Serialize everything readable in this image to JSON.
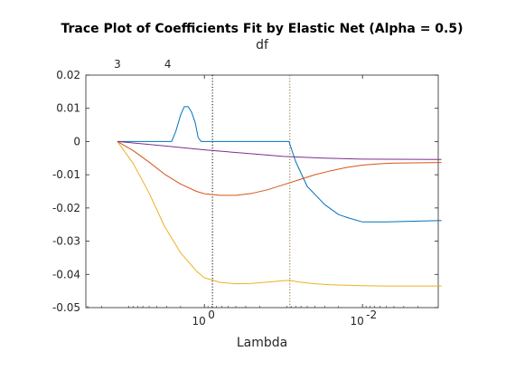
{
  "chart_data": {
    "type": "line",
    "title": "Trace Plot of Coefficients Fit by Elastic Net (Alpha = 0.5)",
    "top_axis_label": "df",
    "top_tick_labels": [
      "3",
      "4"
    ],
    "top_tick_lambda": [
      12.6,
      2.9
    ],
    "xlabel": "Lambda",
    "x_scale": "log",
    "x_reversed": true,
    "xlim": [
      31.6,
      0.0011
    ],
    "x_ticks": [
      {
        "value": 1,
        "base": "10",
        "exp": "0"
      },
      {
        "value": 0.01,
        "base": "10",
        "exp": "-2"
      }
    ],
    "ylabel": "",
    "ylim": [
      -0.05,
      0.02
    ],
    "y_ticks": [
      0.02,
      0.01,
      0,
      -0.01,
      -0.02,
      -0.03,
      -0.04,
      -0.05
    ],
    "y_tick_labels": [
      "0.02",
      "0.01",
      "0",
      "-0.01",
      "-0.02",
      "-0.03",
      "-0.04",
      "-0.05"
    ],
    "vertical_reference_lines": [
      {
        "lambda": 0.79,
        "color": "#000000",
        "style": "dotted"
      },
      {
        "lambda": 0.083,
        "color": "#8c6d31",
        "style": "dotted"
      }
    ],
    "grid": false,
    "series": [
      {
        "color": "#0072BD",
        "lambda": [
          12.6,
          5.0,
          3.2,
          2.6,
          2.3,
          2.0,
          1.8,
          1.6,
          1.45,
          1.3,
          1.2,
          1.1,
          1.0,
          0.5,
          0.1,
          0.085,
          0.07,
          0.05,
          0.03,
          0.02,
          0.015,
          0.01,
          0.005,
          0.001
        ],
        "values": [
          0,
          0,
          0,
          0,
          0.003,
          0.008,
          0.0105,
          0.0105,
          0.0088,
          0.0055,
          0.0012,
          0,
          0,
          0,
          0,
          0,
          -0.006,
          -0.0135,
          -0.019,
          -0.022,
          -0.023,
          -0.0242,
          -0.0242,
          -0.0238
        ]
      },
      {
        "color": "#D95319",
        "lambda": [
          12.6,
          8.0,
          5.0,
          3.2,
          2.0,
          1.26,
          1.0,
          0.63,
          0.4,
          0.25,
          0.158,
          0.1,
          0.063,
          0.04,
          0.025,
          0.016,
          0.01,
          0.006,
          0.004,
          0.001
        ],
        "values": [
          0,
          -0.0027,
          -0.0062,
          -0.0098,
          -0.0128,
          -0.015,
          -0.0157,
          -0.0162,
          -0.0162,
          -0.0156,
          -0.0145,
          -0.013,
          -0.0115,
          -0.01,
          -0.0088,
          -0.0078,
          -0.0071,
          -0.0067,
          -0.0065,
          -0.0063
        ]
      },
      {
        "color": "#EDB120",
        "lambda": [
          12.6,
          8.0,
          5.0,
          3.2,
          2.0,
          1.26,
          1.0,
          0.63,
          0.4,
          0.25,
          0.158,
          0.1,
          0.083,
          0.063,
          0.04,
          0.025,
          0.01,
          0.005,
          0.001
        ],
        "values": [
          0,
          -0.0065,
          -0.0155,
          -0.0255,
          -0.0335,
          -0.039,
          -0.041,
          -0.0424,
          -0.0428,
          -0.0427,
          -0.0423,
          -0.0419,
          -0.0418,
          -0.0423,
          -0.0428,
          -0.0431,
          -0.0434,
          -0.0435,
          -0.0435
        ]
      },
      {
        "color": "#7E2F8E",
        "lambda": [
          12.6,
          3.2,
          1.0,
          0.316,
          0.1,
          0.031,
          0.01,
          0.001
        ],
        "values": [
          0,
          -0.0013,
          -0.0025,
          -0.0035,
          -0.0045,
          -0.005,
          -0.0053,
          -0.0054
        ]
      }
    ]
  }
}
